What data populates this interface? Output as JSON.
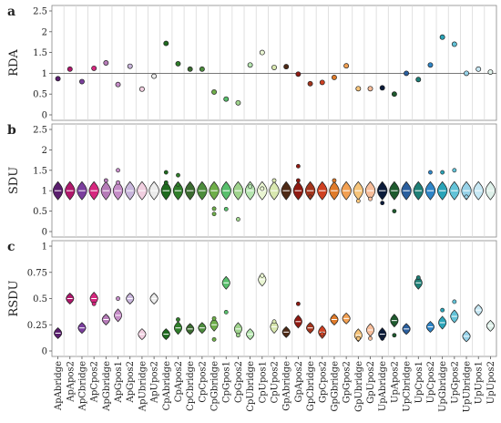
{
  "chart_data": {
    "type": "violin",
    "categories": [
      "ApAbridge",
      "ApApos2",
      "ApCbridge",
      "ApCpos2",
      "ApGbridge",
      "ApGpos1",
      "ApGpos2",
      "ApUbridge",
      "ApUpos2",
      "CpAbridge",
      "CpApos2",
      "CpCbridge",
      "CpCpos2",
      "CpGbridge",
      "CpGpos1",
      "CpGpos2",
      "CpUbridge",
      "CpUpos1",
      "CpUpos2",
      "GpAbridge",
      "GpApos2",
      "GpCbridge",
      "GpCpos2",
      "GpGbridge",
      "GpGpos2",
      "GpUbridge",
      "GpUpos2",
      "UpAbridge",
      "UpApos2",
      "UpCbridge",
      "UpCpos1",
      "UpCpos2",
      "UpGbridge",
      "UpGpos2",
      "UpUbridge",
      "UpUpos1",
      "UpUpos2"
    ],
    "colors": [
      "#5a1e6e",
      "#b0186c",
      "#7b3f9e",
      "#d6287f",
      "#b67bb8",
      "#c58dc7",
      "#c9b6dc",
      "#f1cfe0",
      "#ececec",
      "#1f6b1f",
      "#2f7d2a",
      "#3b6b30",
      "#4d8d3d",
      "#6fae4a",
      "#58bf6c",
      "#9fd38d",
      "#b6e6b0",
      "#e9f5d2",
      "#d9e8b0",
      "#4e2a16",
      "#8f1a12",
      "#a3351d",
      "#cf4122",
      "#e07b2a",
      "#f2a052",
      "#f6c47a",
      "#f7bd9a",
      "#0b1b3a",
      "#1e5a2e",
      "#2a5f9e",
      "#1f7f76",
      "#2f86c8",
      "#2aa4b8",
      "#63c3d8",
      "#97d2e8",
      "#c7e8f4",
      "#dff1ea"
    ],
    "panels": [
      {
        "letter": "a",
        "ylabel": "RDA",
        "style": "points",
        "ylim": [
          0,
          2.5
        ],
        "yticks": [
          "0",
          "0.5",
          "1",
          "1.5",
          "2",
          "2.5"
        ],
        "reference_line": 1,
        "values": [
          0.87,
          1.1,
          0.8,
          1.12,
          1.25,
          0.73,
          1.17,
          0.62,
          0.93,
          1.72,
          1.23,
          1.1,
          1.1,
          0.55,
          0.38,
          0.29,
          1.2,
          1.5,
          1.14,
          1.16,
          0.98,
          0.75,
          0.78,
          0.9,
          1.18,
          0.63,
          0.63,
          0.65,
          0.5,
          1.0,
          0.85,
          1.2,
          1.87,
          1.7,
          1.0,
          1.1,
          1.03
        ]
      },
      {
        "letter": "b",
        "ylabel": "SDU",
        "style": "violin",
        "ylim": [
          0,
          2.5
        ],
        "yticks": [
          "0",
          "0.5",
          "1",
          "1.5",
          "2",
          "2.5"
        ],
        "medians": [
          1.0,
          1.0,
          1.0,
          1.0,
          1.0,
          1.0,
          1.0,
          1.0,
          1.0,
          1.0,
          1.0,
          1.0,
          1.0,
          1.0,
          1.0,
          1.0,
          1.0,
          1.0,
          1.0,
          1.0,
          1.0,
          1.0,
          1.0,
          1.0,
          1.0,
          1.0,
          1.0,
          1.0,
          1.0,
          1.0,
          1.0,
          1.0,
          1.0,
          1.0,
          1.0,
          1.0,
          1.0
        ],
        "outliers": [
          [],
          [],
          [],
          [],
          [
            1.25
          ],
          [
            1.5,
            1.2
          ],
          [],
          [],
          [],
          [
            1.45,
            1.2
          ],
          [
            1.38,
            1.15
          ],
          [],
          [],
          [
            0.43,
            0.56
          ],
          [
            0.55
          ],
          [
            0.3
          ],
          [
            1.1
          ],
          [
            1.05
          ],
          [
            1.25
          ],
          [],
          [
            1.6,
            1.25
          ],
          [
            0.85
          ],
          [],
          [
            1.25
          ],
          [],
          [
            0.75
          ],
          [
            0.8
          ],
          [
            0.7
          ],
          [
            0.5
          ],
          [],
          [],
          [
            1.45
          ],
          [
            1.45
          ],
          [
            1.5
          ],
          [
            0.85
          ],
          [],
          []
        ]
      },
      {
        "letter": "c",
        "ylabel": "RSDU",
        "style": "violin",
        "ylim": [
          0,
          1
        ],
        "yticks": [
          "0",
          "0.25",
          "0.5",
          "0.75",
          "1"
        ],
        "medians": [
          0.17,
          0.5,
          0.22,
          0.5,
          0.3,
          0.34,
          0.5,
          0.16,
          0.5,
          0.16,
          0.22,
          0.21,
          0.22,
          0.25,
          0.65,
          0.21,
          0.16,
          0.68,
          0.23,
          0.18,
          0.28,
          0.22,
          0.18,
          0.3,
          0.31,
          0.15,
          0.2,
          0.16,
          0.29,
          0.21,
          0.65,
          0.23,
          0.27,
          0.33,
          0.14,
          0.39,
          0.24
        ],
        "outliers": [
          [],
          [],
          [],
          [
            0.45
          ],
          [],
          [
            0.5
          ],
          [],
          [],
          [],
          [],
          [
            0.3
          ],
          [],
          [],
          [
            0.11,
            0.31
          ],
          [
            0.37
          ],
          [
            0.15
          ],
          [],
          [
            0.72
          ],
          [
            0.28
          ],
          [],
          [
            0.45
          ],
          [],
          [
            0.16
          ],
          [],
          [],
          [
            0.12
          ],
          [
            0.12
          ],
          [
            0.12
          ],
          [
            0.15
          ],
          [],
          [
            0.7
          ],
          [],
          [
            0.39
          ],
          [
            0.47
          ],
          [],
          [],
          []
        ]
      }
    ]
  }
}
